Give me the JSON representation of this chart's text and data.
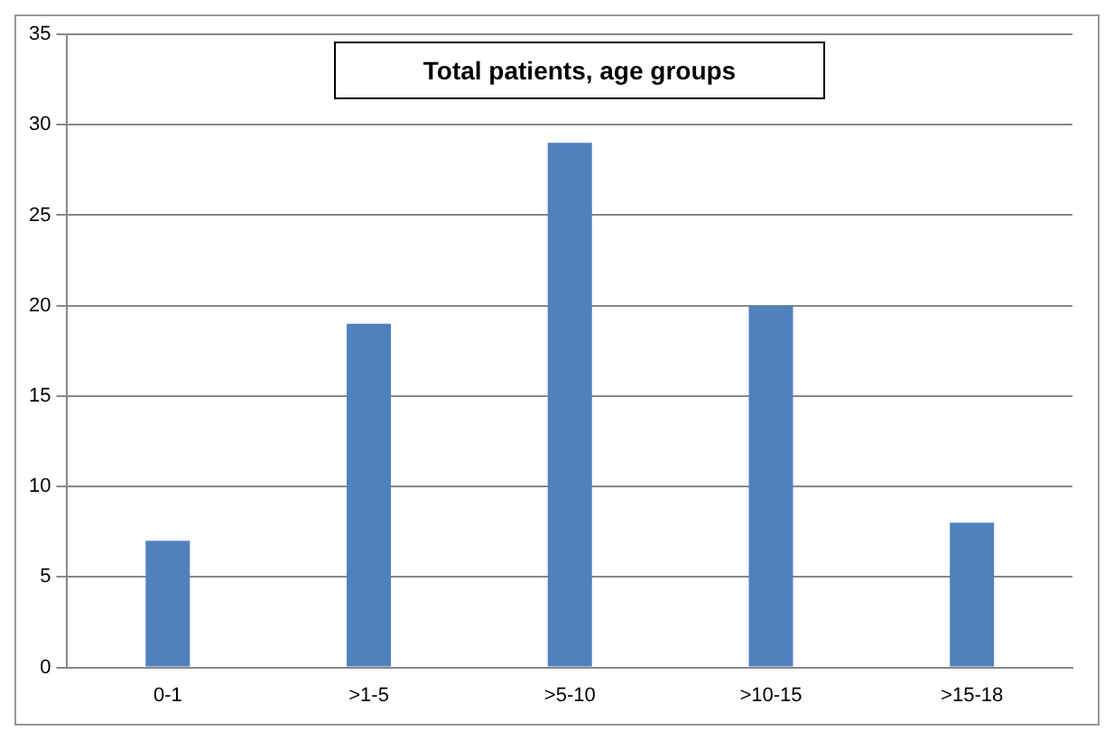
{
  "chart_data": {
    "type": "bar",
    "title": "Total patients, age groups",
    "categories": [
      "0-1",
      ">1-5",
      ">5-10",
      ">10-15",
      ">15-18"
    ],
    "values": [
      7,
      19,
      29,
      20,
      8
    ],
    "color": "#4f81bd",
    "ylim": [
      0,
      35
    ],
    "yticks": [
      0,
      5,
      10,
      15,
      20,
      25,
      30,
      35
    ],
    "grid": "y",
    "legend": false
  }
}
